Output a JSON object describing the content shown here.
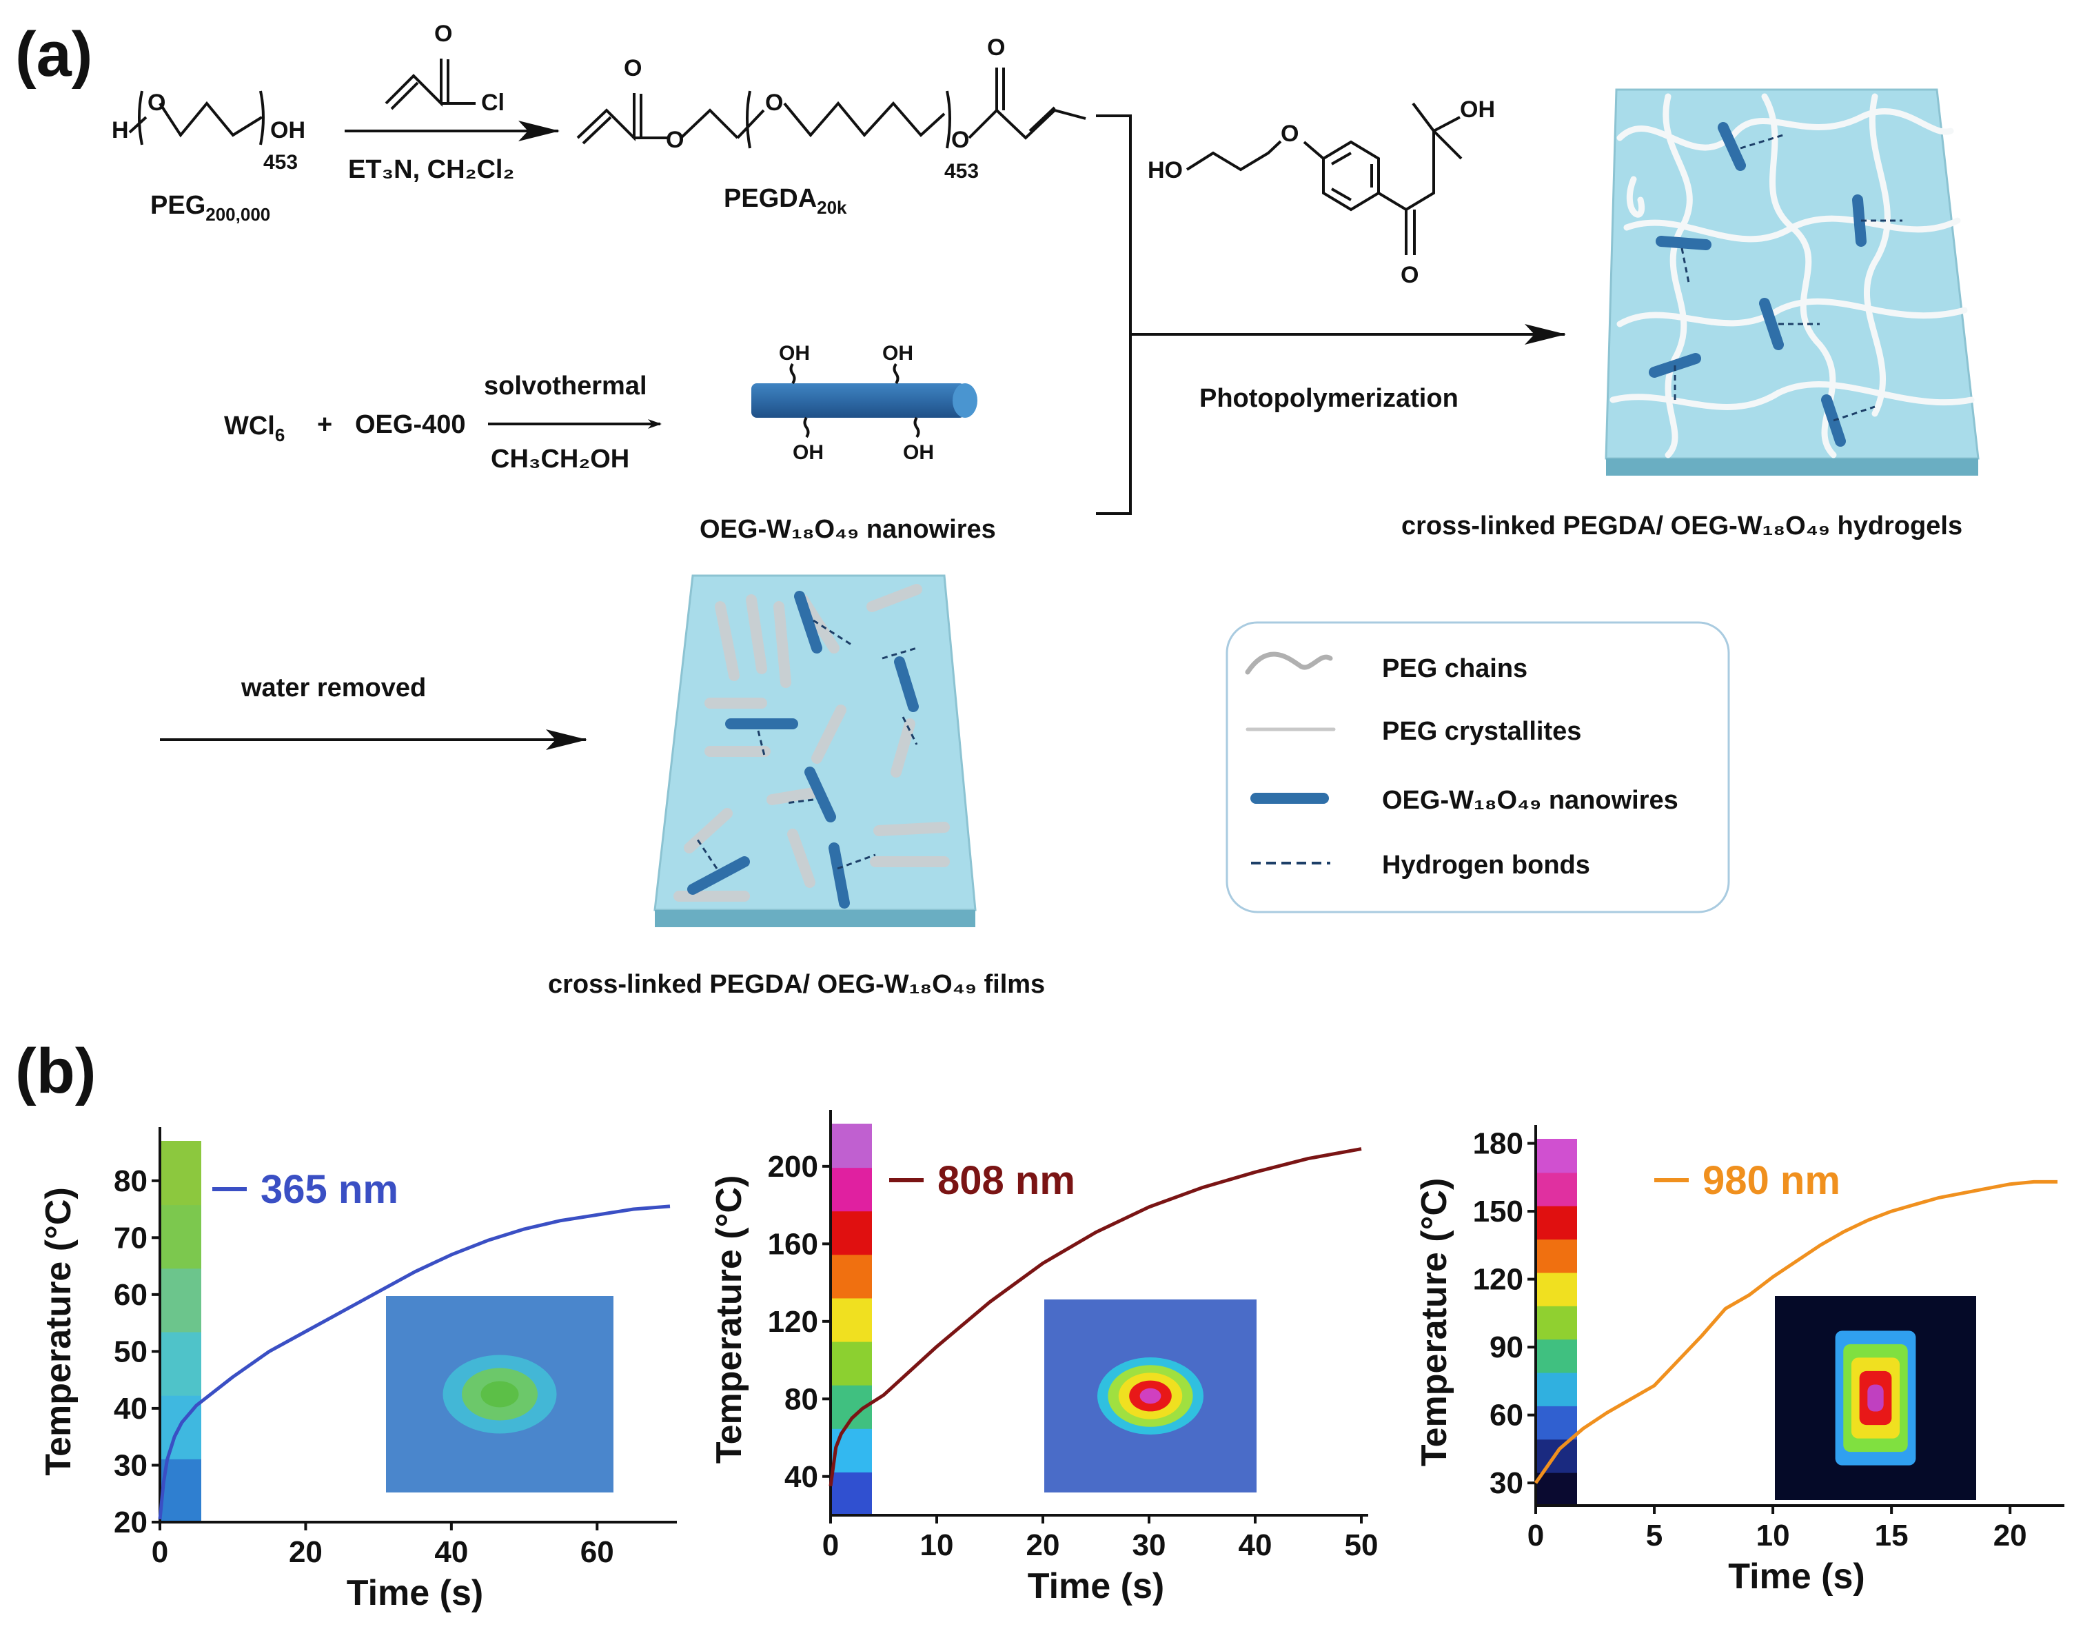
{
  "panels": {
    "a": "(a)",
    "b": "(b)"
  },
  "scheme": {
    "reagent_top": "Cl",
    "conditions_1": "ET₃N, CH₂Cl₂",
    "peg": {
      "name": "PEG",
      "sub": "200,000",
      "h": "H",
      "o": "O",
      "oh": "OH",
      "n": "453"
    },
    "pegda": {
      "name": "PEGDA",
      "sub": "20k",
      "o": "O",
      "n": "453"
    },
    "initiator": {
      "ho": "HO",
      "oh": "OH",
      "o": "O"
    },
    "wcl6": {
      "pre": "WCl",
      "sub": "6"
    },
    "plus": "+",
    "oeg400": "OEG-400",
    "solvothermal": "solvothermal",
    "solvent": "CH₃CH₂OH",
    "nanowire_oh": "OH",
    "nanowires_label": "OEG-W₁₈O₄₉ nanowires",
    "photopolymerization": "Photopolymerization",
    "hydrogels_label": "cross-linked PEGDA/ OEG-W₁₈O₄₉ hydrogels",
    "water_removed": "water removed",
    "films_label": "cross-linked PEGDA/ OEG-W₁₈O₄₉ films"
  },
  "legend": {
    "items": [
      {
        "label": "PEG chains",
        "icon": "wavy-gray-line-icon"
      },
      {
        "label": "PEG crystallites",
        "icon": "straight-gray-line-icon"
      },
      {
        "label": "OEG-W₁₈O₄₉ nanowires",
        "icon": "blue-rod-icon"
      },
      {
        "label": "Hydrogen bonds",
        "icon": "dashed-line-icon"
      }
    ]
  },
  "colors": {
    "gel": "#a9dcea",
    "gel_edge": "#8cc3d2",
    "rod": "#2f6fa8",
    "s365": "#3a4fc4",
    "s808": "#7a1414",
    "s980": "#f0901e",
    "chart_bg": "#4178c8"
  },
  "chart_data": [
    {
      "type": "line",
      "series": [
        {
          "name": "365 nm",
          "x": [
            0,
            0.5,
            1,
            2,
            3,
            5,
            8,
            10,
            15,
            20,
            25,
            30,
            35,
            40,
            45,
            50,
            55,
            60,
            65,
            70
          ],
          "y": [
            20.5,
            27,
            31,
            35,
            37.5,
            40.5,
            43.5,
            45.5,
            50,
            53.5,
            57,
            60.5,
            64,
            67,
            69.5,
            71.5,
            73,
            74,
            75,
            75.5
          ]
        }
      ],
      "xlabel": "Time (s)",
      "ylabel": "Temperature (°C)",
      "xticks": [
        0,
        20,
        40,
        60
      ],
      "yticks": [
        20,
        30,
        40,
        50,
        60,
        70,
        80
      ],
      "xlim": [
        0,
        70
      ],
      "ylim": [
        20,
        87
      ],
      "colorbar": [
        "#2f7fd0",
        "#3fb8e0",
        "#4fc3c9",
        "#6cc58c",
        "#7cc84e",
        "#8cc83e"
      ],
      "inset": {
        "bg": "#4a86cc",
        "spot": [
          "#43b7d6",
          "#6cc86a",
          "#5cbf47"
        ]
      }
    },
    {
      "type": "line",
      "series": [
        {
          "name": "808 nm",
          "x": [
            0,
            0.5,
            1,
            2,
            3,
            5,
            8,
            10,
            15,
            20,
            25,
            30,
            35,
            40,
            45,
            50
          ],
          "y": [
            35,
            55,
            62,
            70,
            75,
            82,
            97,
            107,
            130,
            150,
            166,
            179,
            189,
            197,
            204,
            209
          ]
        }
      ],
      "xlabel": "Time (s)",
      "ylabel": "Temperature (°C)",
      "xticks": [
        0,
        10,
        20,
        30,
        40,
        50
      ],
      "yticks": [
        40,
        80,
        120,
        160,
        200
      ],
      "xlim": [
        0,
        50
      ],
      "ylim": [
        20,
        222
      ],
      "colorbar": [
        "#3050d0",
        "#33b8f0",
        "#40c080",
        "#8cd030",
        "#f0e020",
        "#f07010",
        "#e01010",
        "#e020a0",
        "#c060d0"
      ],
      "inset": {
        "bg": "#4a6cc8",
        "spot": [
          "#30c0e0",
          "#a0e040",
          "#f0e020",
          "#e81818",
          "#d040c0"
        ]
      }
    },
    {
      "type": "line",
      "series": [
        {
          "name": "980 nm",
          "x": [
            0,
            1,
            2,
            3,
            4,
            5,
            6,
            7,
            8,
            9,
            10,
            11,
            12,
            13,
            14,
            15,
            16,
            17,
            18,
            19,
            20,
            21,
            22
          ],
          "y": [
            30,
            45,
            54,
            61,
            67,
            73,
            84,
            95,
            107,
            113,
            121,
            128,
            135,
            141,
            146,
            150,
            153,
            156,
            158,
            160,
            162,
            163,
            163
          ]
        }
      ],
      "xlabel": "Time (s)",
      "ylabel": "Temperature (°C)",
      "xticks": [
        0,
        5,
        10,
        15,
        20
      ],
      "yticks": [
        30,
        60,
        90,
        120,
        150,
        180
      ],
      "xlim": [
        0,
        22
      ],
      "ylim": [
        20,
        182
      ],
      "colorbar": [
        "#0a0a30",
        "#1a2a80",
        "#3060d0",
        "#30b0e0",
        "#40c080",
        "#90d030",
        "#f0e020",
        "#f07010",
        "#e01010",
        "#e030a0",
        "#d050d0"
      ],
      "inset": {
        "bg": "#050a28",
        "spot": [
          "#30a0f0",
          "#80e040",
          "#f0e020",
          "#e81818",
          "#c040c0"
        ]
      }
    }
  ]
}
